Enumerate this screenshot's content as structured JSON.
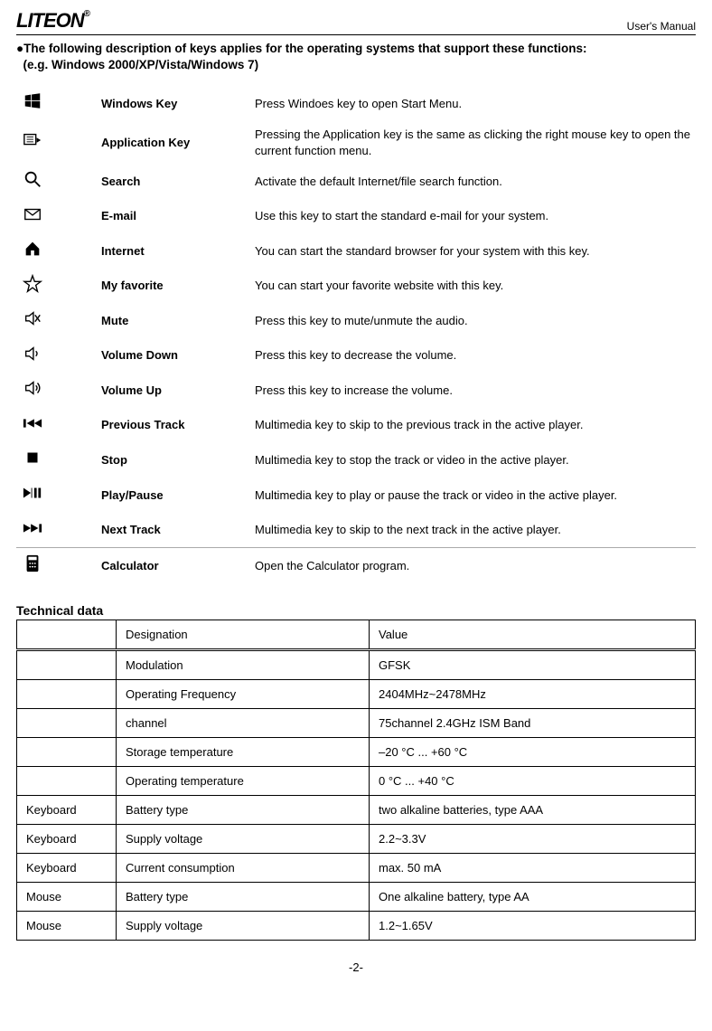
{
  "header": {
    "logo_text": "LITEON",
    "logo_reg": "®",
    "manual_label": "User's Manual"
  },
  "intro_line1": "●The following description of keys applies for the operating systems that support these functions:",
  "intro_line2": "(e.g. Windows 2000/XP/Vista/Windows 7)",
  "keys": [
    {
      "icon": "windows-icon",
      "name": "Windows Key",
      "desc": "Press Windoes key to open Start Menu."
    },
    {
      "icon": "application-icon",
      "name": "Application Key",
      "desc": "Pressing the Application key is the same as clicking the right mouse key to open the current function menu."
    },
    {
      "icon": "search-icon",
      "name": "Search",
      "desc": "Activate the default Internet/file search function."
    },
    {
      "icon": "email-icon",
      "name": "E-mail",
      "desc": "Use this key to start the standard e-mail for your system."
    },
    {
      "icon": "home-icon",
      "name": "Internet",
      "desc": "You can start the standard browser for your system with this key."
    },
    {
      "icon": "star-icon",
      "name": "My favorite",
      "desc": "You can start your favorite website with this key."
    },
    {
      "icon": "mute-icon",
      "name": "Mute",
      "desc": "Press this key to mute/unmute the audio."
    },
    {
      "icon": "voldown-icon",
      "name": "Volume Down",
      "desc": "Press this key to decrease the volume."
    },
    {
      "icon": "volup-icon",
      "name": "Volume Up",
      "desc": "Press this key to increase the volume."
    },
    {
      "icon": "prev-icon",
      "name": "Previous Track",
      "desc": "Multimedia key to skip to the previous track in the active player."
    },
    {
      "icon": "stop-icon",
      "name": "Stop",
      "desc": "Multimedia key to stop the track or video in the active player."
    },
    {
      "icon": "playpause-icon",
      "name": "Play/Pause",
      "desc": "Multimedia key to play or pause the track or video in the active player."
    },
    {
      "icon": "next-icon",
      "name": "Next Track",
      "desc": "Multimedia key to skip to the next track in the active player."
    },
    {
      "icon": "calculator-icon",
      "name": "Calculator",
      "desc": "Open the Calculator program.",
      "separator": true
    }
  ],
  "technical": {
    "heading": "Technical data",
    "header_row": [
      "",
      "Designation",
      "Value"
    ],
    "rows": [
      [
        "",
        "Modulation",
        "GFSK"
      ],
      [
        "",
        "Operating Frequency",
        "2404MHz~2478MHz"
      ],
      [
        "",
        "channel",
        "75channel 2.4GHz ISM Band"
      ],
      [
        "",
        "Storage temperature",
        "–20 °C ... +60 °C"
      ],
      [
        "",
        "Operating temperature",
        "0 °C ... +40 °C"
      ],
      [
        "Keyboard",
        "Battery type",
        "two alkaline batteries, type AAA"
      ],
      [
        "Keyboard",
        "Supply voltage",
        "2.2~3.3V"
      ],
      [
        "Keyboard",
        "Current consumption",
        "max. 50 mA"
      ],
      [
        "Mouse",
        "Battery type",
        "One alkaline battery, type AA"
      ],
      [
        "Mouse",
        "Supply voltage",
        "1.2~1.65V"
      ]
    ]
  },
  "footer": "-2-"
}
